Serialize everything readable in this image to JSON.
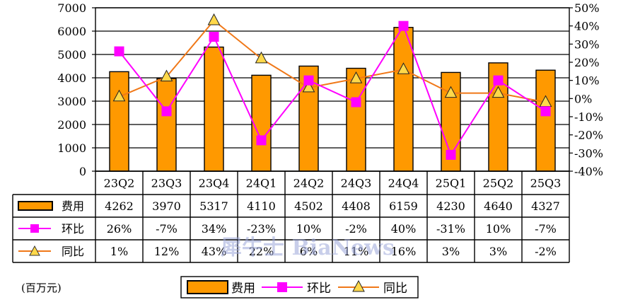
{
  "chart_data": {
    "type": "bar",
    "categories": [
      "23Q2",
      "23Q3",
      "23Q4",
      "24Q1",
      "24Q2",
      "24Q3",
      "24Q4",
      "25Q1",
      "25Q2",
      "25Q3"
    ],
    "y_left": {
      "ticks": [
        "0",
        "1000",
        "2000",
        "3000",
        "4000",
        "5000",
        "6000",
        "7000"
      ],
      "range": [
        0,
        7000
      ]
    },
    "y_right": {
      "ticks": [
        "50%",
        "40%",
        "30%",
        "20%",
        "10%",
        "0%",
        "-10%",
        "-20%",
        "-30%",
        "-40%"
      ],
      "range": [
        -40,
        50
      ]
    },
    "grid": true,
    "series": [
      {
        "name": "费用",
        "type": "bar",
        "axis": "left",
        "color": "#ff9900",
        "values": [
          4262,
          3970,
          5317,
          4110,
          4502,
          4408,
          6159,
          4230,
          4640,
          4327
        ],
        "labels": [
          "4262",
          "3970",
          "5317",
          "4110",
          "4502",
          "4408",
          "6159",
          "4230",
          "4640",
          "4327"
        ]
      },
      {
        "name": "环比",
        "type": "line",
        "axis": "right",
        "color": "#ff00ff",
        "marker": "square",
        "values": [
          26,
          -7,
          34,
          -23,
          10,
          -2,
          40,
          -31,
          10,
          -7
        ],
        "labels": [
          "26%",
          "-7%",
          "34%",
          "-23%",
          "10%",
          "-2%",
          "40%",
          "-31%",
          "10%",
          "-7%"
        ]
      },
      {
        "name": "同比",
        "type": "line",
        "axis": "right",
        "color": "#f07818",
        "marker": "triangle",
        "marker_fill": "#ffd84a",
        "values": [
          1,
          12,
          43,
          22,
          6,
          11,
          16,
          3,
          3,
          -2
        ],
        "labels": [
          "1%",
          "12%",
          "43%",
          "22%",
          "6%",
          "11%",
          "16%",
          "3%",
          "3%",
          "-2%"
        ]
      }
    ],
    "unit_label": "(百万元)",
    "watermark": "犀牛士 BiaNews",
    "legend": {
      "placement": "bottom",
      "items": [
        "费用",
        "环比",
        "同比"
      ]
    }
  }
}
